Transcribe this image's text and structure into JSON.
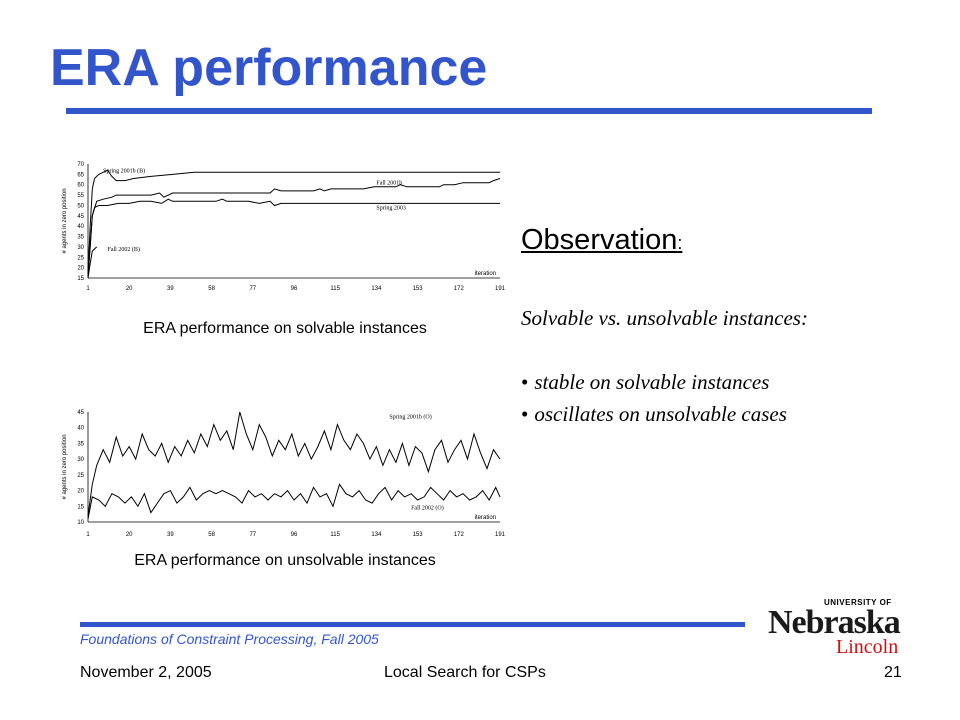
{
  "slide": {
    "title": "ERA performance",
    "observation_heading": "Observation",
    "observation_colon": ":",
    "subtitle": "Solvable vs. unsolvable instances:",
    "bullets": [
      "stable on solvable instances",
      "oscillates on unsolvable cases"
    ],
    "bullet_symbol": "•"
  },
  "captions": {
    "chart1": "ERA performance on solvable instances",
    "chart2": "ERA performance on unsolvable instances"
  },
  "footer": {
    "course": "Foundations of Constraint Processing, Fall 2005",
    "date": "November 2, 2005",
    "topic": "Local Search for CSPs",
    "page": "21"
  },
  "logo": {
    "university": "UNIVERSITY OF",
    "name": "Nebraska",
    "campus": "Lincoln"
  },
  "colors": {
    "accent": "#3355cc",
    "logo_red": "#cc1111"
  },
  "chart_data": [
    {
      "type": "line",
      "ylabel": "# agents in zero position",
      "xlabel": "iteration",
      "x_ticks": [
        1,
        20,
        39,
        58,
        77,
        96,
        115,
        134,
        153,
        172,
        191
      ],
      "ylim": [
        15,
        70
      ],
      "y_ticks": [
        15,
        20,
        25,
        30,
        35,
        40,
        45,
        50,
        55,
        60,
        65,
        70
      ],
      "grid": false,
      "series": [
        {
          "name": "Spring 2001b (B)",
          "label_at": [
            8,
            66
          ],
          "points": [
            [
              1,
              18
            ],
            [
              2,
              40
            ],
            [
              3,
              58
            ],
            [
              4,
              63
            ],
            [
              5,
              64
            ],
            [
              6,
              65
            ],
            [
              8,
              66
            ],
            [
              10,
              67
            ],
            [
              12,
              64
            ],
            [
              14,
              62
            ],
            [
              18,
              62
            ],
            [
              22,
              63
            ],
            [
              30,
              64
            ],
            [
              40,
              65
            ],
            [
              50,
              66
            ],
            [
              60,
              66
            ],
            [
              70,
              66
            ],
            [
              80,
              66
            ],
            [
              90,
              66
            ],
            [
              100,
              66
            ],
            [
              110,
              66
            ],
            [
              120,
              66
            ],
            [
              130,
              66
            ],
            [
              140,
              66
            ],
            [
              150,
              66
            ],
            [
              160,
              66
            ],
            [
              170,
              66
            ],
            [
              180,
              66
            ],
            [
              191,
              66
            ]
          ]
        },
        {
          "name": "Fall 2001b",
          "label_at": [
            134,
            60
          ],
          "points": [
            [
              1,
              16
            ],
            [
              3,
              45
            ],
            [
              5,
              52
            ],
            [
              8,
              53
            ],
            [
              12,
              54
            ],
            [
              14,
              55
            ],
            [
              20,
              55
            ],
            [
              25,
              55
            ],
            [
              30,
              55
            ],
            [
              34,
              56
            ],
            [
              36,
              54
            ],
            [
              40,
              56
            ],
            [
              45,
              56
            ],
            [
              50,
              56
            ],
            [
              55,
              56
            ],
            [
              58,
              56
            ],
            [
              60,
              56
            ],
            [
              65,
              56
            ],
            [
              70,
              56
            ],
            [
              75,
              56
            ],
            [
              80,
              56
            ],
            [
              85,
              56
            ],
            [
              87,
              58
            ],
            [
              90,
              57
            ],
            [
              95,
              57
            ],
            [
              100,
              57
            ],
            [
              105,
              57
            ],
            [
              108,
              58
            ],
            [
              110,
              57
            ],
            [
              113,
              58
            ],
            [
              118,
              58
            ],
            [
              123,
              58
            ],
            [
              128,
              58
            ],
            [
              133,
              59
            ],
            [
              138,
              59
            ],
            [
              143,
              59
            ],
            [
              145,
              60
            ],
            [
              148,
              59
            ],
            [
              153,
              59
            ],
            [
              158,
              59
            ],
            [
              163,
              59
            ],
            [
              165,
              60
            ],
            [
              170,
              60
            ],
            [
              174,
              61
            ],
            [
              178,
              61
            ],
            [
              183,
              61
            ],
            [
              186,
              61
            ],
            [
              188,
              62
            ],
            [
              191,
              63
            ]
          ]
        },
        {
          "name": "Spring 2003",
          "label_at": [
            134,
            48
          ],
          "points": [
            [
              1,
              16
            ],
            [
              2,
              30
            ],
            [
              3,
              45
            ],
            [
              4,
              49
            ],
            [
              6,
              50
            ],
            [
              10,
              50
            ],
            [
              15,
              51
            ],
            [
              20,
              51
            ],
            [
              25,
              52
            ],
            [
              30,
              52
            ],
            [
              35,
              51
            ],
            [
              38,
              53
            ],
            [
              40,
              52
            ],
            [
              45,
              52
            ],
            [
              50,
              52
            ],
            [
              55,
              52
            ],
            [
              60,
              52
            ],
            [
              63,
              53
            ],
            [
              65,
              52
            ],
            [
              70,
              52
            ],
            [
              75,
              52
            ],
            [
              80,
              51
            ],
            [
              85,
              52
            ],
            [
              87,
              50
            ],
            [
              90,
              51
            ],
            [
              95,
              51
            ],
            [
              100,
              51
            ],
            [
              105,
              51
            ],
            [
              110,
              51
            ],
            [
              115,
              51
            ],
            [
              120,
              51
            ],
            [
              125,
              51
            ],
            [
              130,
              51
            ],
            [
              135,
              51
            ],
            [
              140,
              51
            ],
            [
              145,
              51
            ],
            [
              150,
              51
            ],
            [
              155,
              51
            ],
            [
              160,
              51
            ],
            [
              165,
              51
            ],
            [
              170,
              51
            ],
            [
              175,
              51
            ],
            [
              180,
              51
            ],
            [
              185,
              51
            ],
            [
              191,
              51
            ]
          ]
        },
        {
          "name": "Fall 2002 (B)",
          "label_at": [
            10,
            28
          ],
          "points": [
            [
              1,
              15
            ],
            [
              2,
              22
            ],
            [
              3,
              28
            ],
            [
              4,
              29
            ],
            [
              5,
              30
            ]
          ]
        }
      ]
    },
    {
      "type": "line",
      "ylabel": "# agents in zero position",
      "xlabel": "iteration",
      "x_ticks": [
        1,
        20,
        39,
        58,
        77,
        96,
        115,
        134,
        153,
        172,
        191
      ],
      "ylim": [
        10,
        45
      ],
      "y_ticks": [
        10,
        15,
        20,
        25,
        30,
        35,
        40,
        45
      ],
      "grid": false,
      "series": [
        {
          "name": "Spring 2001b (O)",
          "label_at": [
            140,
            43
          ],
          "points": [
            [
              1,
              12
            ],
            [
              3,
              22
            ],
            [
              5,
              28
            ],
            [
              8,
              33
            ],
            [
              11,
              29
            ],
            [
              14,
              37
            ],
            [
              17,
              31
            ],
            [
              20,
              34
            ],
            [
              23,
              30
            ],
            [
              26,
              38
            ],
            [
              29,
              33
            ],
            [
              32,
              31
            ],
            [
              35,
              35
            ],
            [
              38,
              29
            ],
            [
              41,
              34
            ],
            [
              44,
              31
            ],
            [
              47,
              36
            ],
            [
              50,
              32
            ],
            [
              53,
              38
            ],
            [
              56,
              34
            ],
            [
              59,
              41
            ],
            [
              62,
              36
            ],
            [
              65,
              39
            ],
            [
              68,
              33
            ],
            [
              71,
              45
            ],
            [
              74,
              38
            ],
            [
              77,
              33
            ],
            [
              80,
              41
            ],
            [
              83,
              37
            ],
            [
              86,
              31
            ],
            [
              89,
              36
            ],
            [
              92,
              33
            ],
            [
              95,
              38
            ],
            [
              98,
              31
            ],
            [
              101,
              35
            ],
            [
              104,
              30
            ],
            [
              107,
              34
            ],
            [
              110,
              39
            ],
            [
              113,
              33
            ],
            [
              116,
              41
            ],
            [
              119,
              36
            ],
            [
              122,
              33
            ],
            [
              125,
              38
            ],
            [
              128,
              35
            ],
            [
              131,
              30
            ],
            [
              134,
              34
            ],
            [
              137,
              28
            ],
            [
              140,
              33
            ],
            [
              143,
              29
            ],
            [
              146,
              35
            ],
            [
              149,
              28
            ],
            [
              152,
              34
            ],
            [
              155,
              32
            ],
            [
              158,
              26
            ],
            [
              161,
              33
            ],
            [
              164,
              36
            ],
            [
              167,
              29
            ],
            [
              170,
              33
            ],
            [
              173,
              36
            ],
            [
              176,
              30
            ],
            [
              179,
              38
            ],
            [
              182,
              32
            ],
            [
              185,
              27
            ],
            [
              188,
              33
            ],
            [
              191,
              30
            ]
          ]
        },
        {
          "name": "Fall 2002 (O)",
          "label_at": [
            150,
            14
          ],
          "points": [
            [
              1,
              11
            ],
            [
              3,
              18
            ],
            [
              6,
              17
            ],
            [
              9,
              15
            ],
            [
              12,
              19
            ],
            [
              15,
              18
            ],
            [
              18,
              16
            ],
            [
              21,
              18
            ],
            [
              24,
              15
            ],
            [
              27,
              19
            ],
            [
              30,
              13
            ],
            [
              33,
              16
            ],
            [
              36,
              19
            ],
            [
              39,
              20
            ],
            [
              42,
              16
            ],
            [
              45,
              18
            ],
            [
              48,
              21
            ],
            [
              51,
              17
            ],
            [
              54,
              19
            ],
            [
              57,
              20
            ],
            [
              60,
              19
            ],
            [
              63,
              20
            ],
            [
              66,
              19
            ],
            [
              69,
              18
            ],
            [
              72,
              16
            ],
            [
              75,
              20
            ],
            [
              78,
              18
            ],
            [
              81,
              19
            ],
            [
              84,
              17
            ],
            [
              87,
              19
            ],
            [
              90,
              18
            ],
            [
              93,
              20
            ],
            [
              96,
              17
            ],
            [
              99,
              19
            ],
            [
              102,
              16
            ],
            [
              105,
              21
            ],
            [
              108,
              18
            ],
            [
              111,
              19
            ],
            [
              114,
              15
            ],
            [
              117,
              22
            ],
            [
              120,
              19
            ],
            [
              123,
              18
            ],
            [
              126,
              20
            ],
            [
              129,
              17
            ],
            [
              132,
              16
            ],
            [
              135,
              19
            ],
            [
              138,
              21
            ],
            [
              141,
              17
            ],
            [
              144,
              20
            ],
            [
              147,
              18
            ],
            [
              150,
              19
            ],
            [
              153,
              17
            ],
            [
              156,
              18
            ],
            [
              159,
              21
            ],
            [
              162,
              19
            ],
            [
              165,
              17
            ],
            [
              168,
              20
            ],
            [
              171,
              18
            ],
            [
              174,
              19
            ],
            [
              177,
              17
            ],
            [
              180,
              18
            ],
            [
              183,
              20
            ],
            [
              186,
              17
            ],
            [
              189,
              21
            ],
            [
              191,
              18
            ]
          ]
        }
      ]
    }
  ]
}
